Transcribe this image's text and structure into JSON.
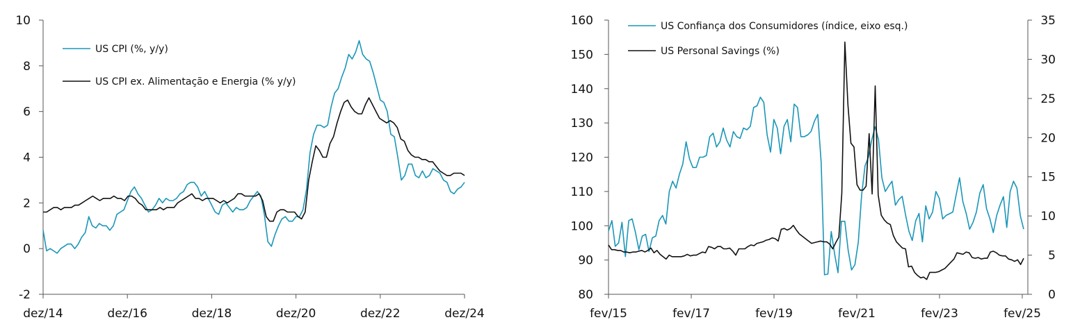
{
  "chart_data": [
    {
      "type": "line",
      "x_start": "dez/14",
      "x_end": "dez/24",
      "x_tick_labels": [
        "dez/14",
        "dez/16",
        "dez/18",
        "dez/20",
        "dez/22",
        "dez/24"
      ],
      "y_tick_labels": [
        "-2",
        "0",
        "2",
        "4",
        "6",
        "8",
        "10"
      ],
      "ylim": [
        -2,
        10
      ],
      "grid": false,
      "legend_position": "top-left",
      "series": [
        {
          "name": "US CPI (%, y/y)",
          "color": "#1a96b8",
          "values": [
            0.8,
            -0.1,
            0.0,
            -0.1,
            -0.2,
            0.0,
            0.1,
            0.2,
            0.2,
            0.0,
            0.2,
            0.5,
            0.7,
            1.4,
            1.0,
            0.9,
            1.1,
            1.0,
            1.0,
            0.8,
            1.0,
            1.5,
            1.6,
            1.7,
            2.1,
            2.5,
            2.7,
            2.4,
            2.2,
            1.9,
            1.6,
            1.7,
            1.9,
            2.2,
            2.0,
            2.2,
            2.1,
            2.1,
            2.2,
            2.4,
            2.5,
            2.8,
            2.9,
            2.9,
            2.7,
            2.3,
            2.5,
            2.2,
            1.9,
            1.6,
            1.5,
            1.9,
            2.0,
            1.8,
            1.6,
            1.8,
            1.7,
            1.7,
            1.8,
            2.1,
            2.3,
            2.5,
            2.3,
            1.5,
            0.3,
            0.1,
            0.6,
            1.0,
            1.3,
            1.4,
            1.2,
            1.2,
            1.4,
            1.4,
            1.7,
            2.6,
            4.2,
            5.0,
            5.4,
            5.4,
            5.3,
            5.4,
            6.2,
            6.8,
            7.0,
            7.5,
            7.9,
            8.5,
            8.3,
            8.6,
            9.1,
            8.5,
            8.3,
            8.2,
            7.7,
            7.1,
            6.5,
            6.4,
            6.0,
            5.0,
            4.9,
            4.0,
            3.0,
            3.2,
            3.7,
            3.7,
            3.2,
            3.1,
            3.4,
            3.1,
            3.2,
            3.5,
            3.4,
            3.3,
            3.0,
            2.9,
            2.5,
            2.4,
            2.6,
            2.7,
            2.9
          ]
        },
        {
          "name": "US CPI ex. Alimentação e Energia (% y/y)",
          "color": "#111111",
          "values": [
            1.6,
            1.6,
            1.7,
            1.8,
            1.8,
            1.7,
            1.8,
            1.8,
            1.8,
            1.9,
            1.9,
            2.0,
            2.1,
            2.2,
            2.3,
            2.2,
            2.1,
            2.2,
            2.2,
            2.2,
            2.3,
            2.2,
            2.2,
            2.1,
            2.3,
            2.3,
            2.2,
            2.0,
            1.9,
            1.7,
            1.7,
            1.7,
            1.7,
            1.8,
            1.7,
            1.8,
            1.8,
            1.8,
            2.0,
            2.1,
            2.2,
            2.3,
            2.4,
            2.2,
            2.2,
            2.1,
            2.2,
            2.2,
            2.2,
            2.1,
            2.0,
            2.1,
            2.0,
            2.1,
            2.2,
            2.4,
            2.4,
            2.3,
            2.3,
            2.3,
            2.3,
            2.4,
            2.1,
            1.4,
            1.2,
            1.2,
            1.6,
            1.7,
            1.7,
            1.6,
            1.6,
            1.6,
            1.4,
            1.3,
            1.6,
            3.0,
            3.8,
            4.5,
            4.3,
            4.0,
            4.0,
            4.6,
            4.9,
            5.5,
            6.0,
            6.4,
            6.5,
            6.2,
            6.0,
            5.9,
            5.9,
            6.3,
            6.6,
            6.3,
            6.0,
            5.7,
            5.6,
            5.5,
            5.6,
            5.5,
            5.3,
            4.8,
            4.7,
            4.3,
            4.1,
            4.0,
            4.0,
            3.9,
            3.9,
            3.8,
            3.8,
            3.6,
            3.4,
            3.3,
            3.2,
            3.2,
            3.3,
            3.3,
            3.3,
            3.2
          ]
        }
      ]
    },
    {
      "type": "line",
      "x_start": "fev/15",
      "x_end": "fev/25",
      "x_tick_labels": [
        "fev/15",
        "fev/17",
        "fev/19",
        "fev/21",
        "fev/23",
        "fev/25"
      ],
      "y_left_tick_labels": [
        "80",
        "90",
        "100",
        "110",
        "120",
        "130",
        "140",
        "150",
        "160"
      ],
      "y_right_tick_labels": [
        "0",
        "5",
        "10",
        "15",
        "20",
        "25",
        "30",
        "35"
      ],
      "ylim_left": [
        80,
        160
      ],
      "ylim_right": [
        0,
        35
      ],
      "grid": false,
      "legend_position": "top-left",
      "series": [
        {
          "name": "US Confiança dos Consumidores (índice, eixo esq.)",
          "axis": "left",
          "color": "#1a96b8",
          "values": [
            98.5,
            101.5,
            94,
            95,
            101,
            91,
            101.5,
            102,
            98,
            93,
            97,
            97.5,
            92.5,
            96.5,
            97,
            101.5,
            103,
            100.5,
            110,
            113,
            111,
            115,
            118,
            124.5,
            119.5,
            117,
            117,
            120,
            120,
            120.5,
            126,
            127,
            123,
            124.5,
            128.5,
            125,
            123,
            127.5,
            126,
            125.5,
            128.5,
            128,
            129,
            134.5,
            135,
            137.5,
            136,
            126.5,
            121.5,
            131,
            128.5,
            121,
            129,
            131,
            124.5,
            135.5,
            134.5,
            126,
            126,
            126.5,
            127.5,
            130.5,
            132.5,
            118.5,
            85.7,
            85.9,
            98.3,
            91.7,
            86.3,
            101.3,
            101.3,
            92.9,
            87.1,
            88.6,
            95.2,
            109.0,
            117.5,
            120,
            125.1,
            128.9,
            125.1,
            114.0,
            110,
            111.6,
            113.0,
            106,
            107.6,
            108.6,
            103.2,
            98.4,
            95.7,
            101.4,
            103.6,
            95.3,
            105.8,
            102.0,
            104.0,
            110.0,
            108.0,
            102.0,
            103.0,
            103.5,
            104.0,
            109.0,
            114.0,
            107.0,
            103.5,
            99.0,
            101.0,
            104.0,
            109.5,
            112.0,
            105.0,
            102.0,
            98.0,
            103.0,
            106.0,
            108.5,
            99.5,
            110.0,
            113.0,
            111.0,
            103.0,
            99.0
          ]
        },
        {
          "name": "US Personal Savings (%)",
          "axis": "right",
          "color": "#111111",
          "values": [
            6.3,
            5.7,
            5.7,
            5.6,
            5.6,
            5.4,
            5.4,
            5.3,
            5.4,
            5.4,
            5.5,
            5.6,
            5.4,
            5.6,
            5.9,
            5.3,
            5.6,
            5.1,
            4.8,
            4.5,
            5.0,
            4.8,
            4.8,
            4.8,
            4.8,
            4.9,
            5.1,
            4.9,
            5.0,
            5.0,
            5.2,
            5.4,
            5.3,
            6.1,
            6.0,
            5.8,
            6.1,
            6.1,
            5.8,
            5.8,
            5.9,
            5.5,
            5.0,
            5.8,
            5.8,
            5.8,
            6.1,
            6.3,
            6.2,
            6.5,
            6.6,
            6.7,
            6.9,
            7.0,
            7.2,
            7.1,
            6.8,
            8.3,
            8.4,
            8.2,
            8.4,
            8.8,
            8.2,
            7.7,
            7.4,
            7.1,
            6.8,
            6.5,
            6.6,
            6.7,
            6.8,
            6.7,
            6.7,
            6.4,
            5.8,
            6.6,
            7.3,
            12.9,
            32.2,
            24.2,
            19.3,
            18.8,
            14.0,
            13.3,
            13.3,
            13.8,
            20.5,
            12.8,
            26.6,
            12.7,
            10.1,
            9.5,
            9.1,
            8.9,
            7.5,
            6.7,
            6.3,
            5.9,
            5.8,
            3.5,
            3.6,
            2.8,
            2.4,
            2.1,
            2.2,
            1.9,
            2.8,
            2.8,
            2.8,
            2.9,
            3.1,
            3.3,
            3.7,
            4.1,
            4.5,
            5.3,
            5.2,
            5.1,
            5.4,
            5.3,
            4.7,
            4.6,
            4.7,
            4.5,
            4.6,
            4.6,
            5.4,
            5.5,
            5.3,
            5.0,
            4.9,
            4.9,
            4.5,
            4.4,
            4.2,
            4.4,
            3.8,
            4.6
          ]
        }
      ]
    }
  ]
}
